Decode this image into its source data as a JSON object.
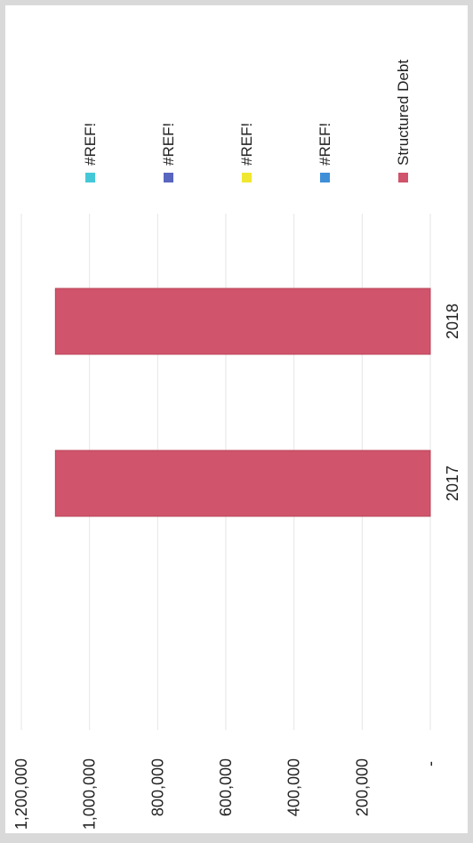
{
  "chart_data": {
    "type": "bar",
    "orientation": "rotated-90-ccw",
    "categories": [
      "2017",
      "2018"
    ],
    "series": [
      {
        "name": "Structured Debt",
        "values": [
          1100000,
          1100000
        ],
        "color": "#d0546b"
      },
      {
        "name": "#REF!",
        "values": [
          0,
          0
        ],
        "color": "#44c8d8"
      },
      {
        "name": "#REF!",
        "values": [
          0,
          0
        ],
        "color": "#5866c0"
      },
      {
        "name": "#REF!",
        "values": [
          0,
          0
        ],
        "color": "#f0e830"
      },
      {
        "name": "#REF!",
        "values": [
          0,
          0
        ],
        "color": "#3f8fd8"
      }
    ],
    "ylim": [
      0,
      1200000
    ],
    "ytick_labels": [
      "-",
      "200,000",
      "400,000",
      "600,000",
      "800,000",
      "1,000,000",
      "1,200,000"
    ],
    "grid": true,
    "legend_position": "right",
    "legend": [
      "#REF!",
      "#REF!",
      "#REF!",
      "#REF!",
      "Structured Debt"
    ]
  }
}
